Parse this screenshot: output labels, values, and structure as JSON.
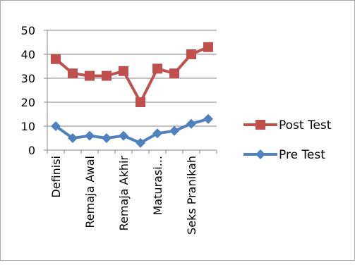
{
  "chart_data": {
    "type": "line",
    "categories": [
      "Definisi",
      "",
      "Remaja Awal",
      "",
      "Remaja Akhir",
      "",
      "Maturasi...",
      "",
      "Seks Pranikah",
      ""
    ],
    "series": [
      {
        "name": "Post Test",
        "values": [
          38,
          32,
          31,
          31,
          33,
          20,
          34,
          32,
          40,
          43
        ],
        "color": "#c0504d",
        "marker": "square"
      },
      {
        "name": "Pre Test",
        "values": [
          10,
          5,
          6,
          5,
          6,
          3,
          7,
          8,
          11,
          13
        ],
        "color": "#4f81bd",
        "marker": "diamond"
      }
    ],
    "y_ticks": [
      "0",
      "10",
      "20",
      "30",
      "40",
      "50"
    ],
    "ylim": [
      0,
      50
    ],
    "grid": true,
    "legend_position": "right"
  }
}
